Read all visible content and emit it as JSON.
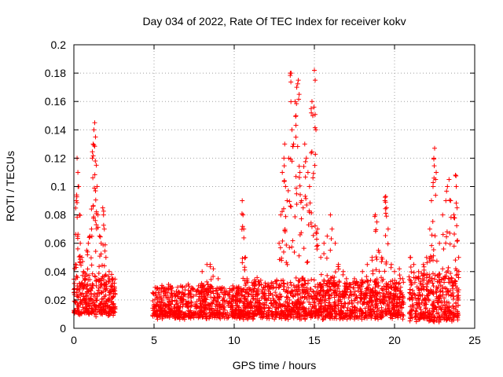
{
  "chart_data": {
    "type": "scatter",
    "title": "Day 034 of 2022, Rate Of TEC Index for receiver kokv",
    "xlabel": "GPS time / hours",
    "ylabel": "ROTI / TECUs",
    "xlim": [
      0,
      25
    ],
    "ylim": [
      0,
      0.2
    ],
    "x_ticks": [
      0,
      5,
      10,
      15,
      20,
      25
    ],
    "y_ticks": [
      0,
      0.02,
      0.04,
      0.06,
      0.08,
      0.1,
      0.12,
      0.14,
      0.16,
      0.18,
      0.2
    ],
    "x_tick_labels": [
      "0",
      "5",
      "10",
      "15",
      "20",
      "25"
    ],
    "y_tick_labels": [
      "0",
      "0.02",
      "0.04",
      "0.06",
      "0.08",
      "0.1",
      "0.12",
      "0.14",
      "0.16",
      "0.18",
      "0.2"
    ],
    "grid": true,
    "marker": "+",
    "series_color": "#ff0000",
    "series": [
      {
        "name": "ROTI",
        "points": [
          [
            0.1,
            0.045
          ],
          [
            0.15,
            0.09
          ],
          [
            0.2,
            0.12
          ],
          [
            0.25,
            0.11
          ],
          [
            0.3,
            0.1
          ],
          [
            0.35,
            0.08
          ],
          [
            0.4,
            0.06
          ],
          [
            0.5,
            0.05
          ],
          [
            0.6,
            0.04
          ],
          [
            0.7,
            0.035
          ],
          [
            0.8,
            0.055
          ],
          [
            0.9,
            0.06
          ],
          [
            1.0,
            0.065
          ],
          [
            1.1,
            0.07
          ],
          [
            1.15,
            0.12
          ],
          [
            1.2,
            0.13
          ],
          [
            1.25,
            0.14
          ],
          [
            1.3,
            0.145
          ],
          [
            1.35,
            0.135
          ],
          [
            1.4,
            0.115
          ],
          [
            1.45,
            0.1
          ],
          [
            1.5,
            0.08
          ],
          [
            1.6,
            0.065
          ],
          [
            1.7,
            0.06
          ],
          [
            1.8,
            0.085
          ],
          [
            1.85,
            0.08
          ],
          [
            1.9,
            0.07
          ],
          [
            2.0,
            0.05
          ],
          [
            2.2,
            0.04
          ],
          [
            2.4,
            0.035
          ],
          [
            8.0,
            0.04
          ],
          [
            8.3,
            0.045
          ],
          [
            8.5,
            0.045
          ],
          [
            8.7,
            0.042
          ],
          [
            9.0,
            0.035
          ],
          [
            10.5,
            0.09
          ],
          [
            10.55,
            0.08
          ],
          [
            10.6,
            0.07
          ],
          [
            10.7,
            0.05
          ],
          [
            10.8,
            0.035
          ],
          [
            12.8,
            0.06
          ],
          [
            12.9,
            0.08
          ],
          [
            13.0,
            0.11
          ],
          [
            13.1,
            0.12
          ],
          [
            13.15,
            0.13
          ],
          [
            13.2,
            0.1
          ],
          [
            13.3,
            0.09
          ],
          [
            13.4,
            0.12
          ],
          [
            13.5,
            0.18
          ],
          [
            13.55,
            0.18
          ],
          [
            13.6,
            0.14
          ],
          [
            13.7,
            0.13
          ],
          [
            13.8,
            0.16
          ],
          [
            13.85,
            0.15
          ],
          [
            13.9,
            0.17
          ],
          [
            14.0,
            0.175
          ],
          [
            14.05,
            0.165
          ],
          [
            14.1,
            0.11
          ],
          [
            14.2,
            0.09
          ],
          [
            14.3,
            0.085
          ],
          [
            14.4,
            0.13
          ],
          [
            14.5,
            0.12
          ],
          [
            14.6,
            0.11
          ],
          [
            14.7,
            0.1
          ],
          [
            14.8,
            0.155
          ],
          [
            14.85,
            0.16
          ],
          [
            14.9,
            0.15
          ],
          [
            15.0,
            0.182
          ],
          [
            15.05,
            0.175
          ],
          [
            15.1,
            0.14
          ],
          [
            15.2,
            0.07
          ],
          [
            15.4,
            0.05
          ],
          [
            15.6,
            0.06
          ],
          [
            15.8,
            0.065
          ],
          [
            16.0,
            0.08
          ],
          [
            16.1,
            0.07
          ],
          [
            16.3,
            0.06
          ],
          [
            16.5,
            0.045
          ],
          [
            16.8,
            0.04
          ],
          [
            17.0,
            0.035
          ],
          [
            17.5,
            0.035
          ],
          [
            18.0,
            0.04
          ],
          [
            18.3,
            0.045
          ],
          [
            18.6,
            0.05
          ],
          [
            18.8,
            0.08
          ],
          [
            18.9,
            0.075
          ],
          [
            19.0,
            0.055
          ],
          [
            19.2,
            0.05
          ],
          [
            19.4,
            0.09
          ],
          [
            19.45,
            0.093
          ],
          [
            19.5,
            0.085
          ],
          [
            19.6,
            0.07
          ],
          [
            19.8,
            0.045
          ],
          [
            20.0,
            0.04
          ],
          [
            20.3,
            0.042
          ],
          [
            20.5,
            0.035
          ],
          [
            21.0,
            0.05
          ],
          [
            21.2,
            0.045
          ],
          [
            21.5,
            0.04
          ],
          [
            21.8,
            0.045
          ],
          [
            22.0,
            0.05
          ],
          [
            22.2,
            0.07
          ],
          [
            22.3,
            0.09
          ],
          [
            22.4,
            0.1
          ],
          [
            22.45,
            0.12
          ],
          [
            22.5,
            0.127
          ],
          [
            22.6,
            0.11
          ],
          [
            22.8,
            0.06
          ],
          [
            23.0,
            0.08
          ],
          [
            23.2,
            0.09
          ],
          [
            23.3,
            0.1
          ],
          [
            23.4,
            0.105
          ],
          [
            23.5,
            0.09
          ],
          [
            23.7,
            0.08
          ],
          [
            23.8,
            0.108
          ],
          [
            23.85,
            0.1
          ],
          [
            23.9,
            0.085
          ],
          [
            24.0,
            0.05
          ]
        ]
      }
    ],
    "density_bands": [
      {
        "x_start": 0.0,
        "x_end": 2.6,
        "y_base": 0.008,
        "y_top": 0.035
      },
      {
        "x_start": 4.9,
        "x_end": 11.0,
        "y_base": 0.006,
        "y_top": 0.028
      },
      {
        "x_start": 11.0,
        "x_end": 20.6,
        "y_base": 0.006,
        "y_top": 0.032
      },
      {
        "x_start": 20.9,
        "x_end": 24.0,
        "y_base": 0.004,
        "y_top": 0.036
      }
    ]
  }
}
